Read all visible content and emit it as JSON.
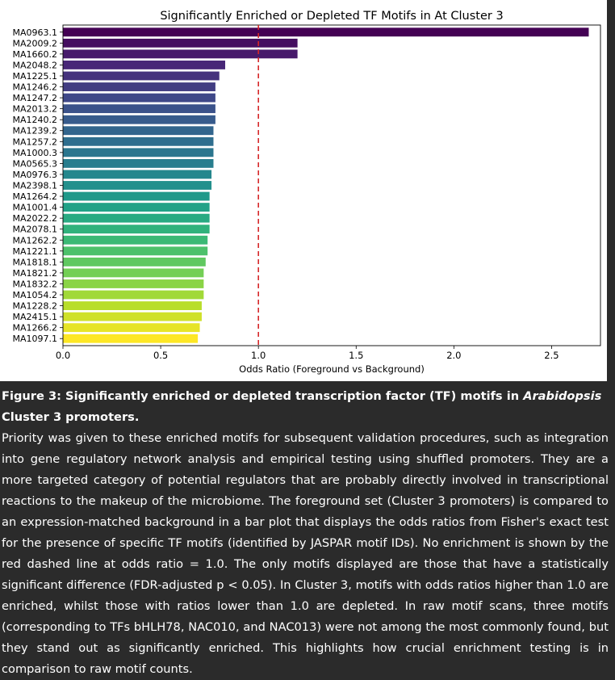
{
  "chart_data": {
    "type": "bar",
    "orientation": "horizontal",
    "title": "Significantly Enriched or Depleted TF Motifs in At Cluster 3",
    "xlabel": "Odds Ratio (Foreground vs Background)",
    "ylabel": "",
    "xlim": [
      0,
      2.75
    ],
    "xticks": [
      "0.0",
      "0.5",
      "1.0",
      "1.5",
      "2.0",
      "2.5"
    ],
    "reference_line": {
      "x": 1.0,
      "color": "#d62728",
      "style": "dashed"
    },
    "colormap": "viridis",
    "grid": false,
    "categories": [
      "MA0963.1",
      "MA2009.2",
      "MA1660.2",
      "MA2048.2",
      "MA1225.1",
      "MA1246.2",
      "MA1247.2",
      "MA2013.2",
      "MA1240.2",
      "MA1239.2",
      "MA1257.2",
      "MA1000.3",
      "MA0565.3",
      "MA0976.3",
      "MA2398.1",
      "MA1264.2",
      "MA1001.4",
      "MA2022.2",
      "MA2078.1",
      "MA1262.2",
      "MA1221.1",
      "MA1818.1",
      "MA1821.2",
      "MA1832.2",
      "MA1054.2",
      "MA1228.2",
      "MA2415.1",
      "MA1266.2",
      "MA1097.1"
    ],
    "values": [
      2.69,
      1.2,
      1.2,
      0.83,
      0.8,
      0.78,
      0.78,
      0.78,
      0.78,
      0.77,
      0.77,
      0.77,
      0.77,
      0.76,
      0.76,
      0.75,
      0.75,
      0.75,
      0.75,
      0.74,
      0.74,
      0.73,
      0.72,
      0.72,
      0.72,
      0.71,
      0.71,
      0.7,
      0.69
    ]
  },
  "caption": {
    "title_pre": "Figure 3: Significantly enriched or depleted transcription factor (TF) motifs in ",
    "title_italic": "Arabidopsis",
    "title_post": " Cluster 3 promoters.",
    "body": "Priority was given to these enriched motifs for subsequent validation procedures, such as integration into gene regulatory network analysis and empirical testing using shuffled promoters. They are a more targeted category of potential regulators that are probably directly involved in transcriptional reactions to the makeup of the microbiome. The foreground set (Cluster 3 promoters) is compared to an expression-matched background in a bar plot that displays the odds ratios from Fisher's exact test for the presence of specific TF motifs (identified by JASPAR motif IDs). No enrichment is shown by the red dashed line at odds ratio = 1.0. The only motifs displayed are those that have a statistically significant difference (FDR-adjusted p < 0.05). In Cluster 3, motifs with odds ratios higher than 1.0 are enriched, whilst those with ratios lower than 1.0 are depleted. In raw motif scans, three motifs (corresponding to TFs bHLH78, NAC010, and NAC013) were not among the most commonly found, but they stand out as significantly enriched. This highlights how crucial enrichment testing is in comparison to raw motif counts."
  }
}
